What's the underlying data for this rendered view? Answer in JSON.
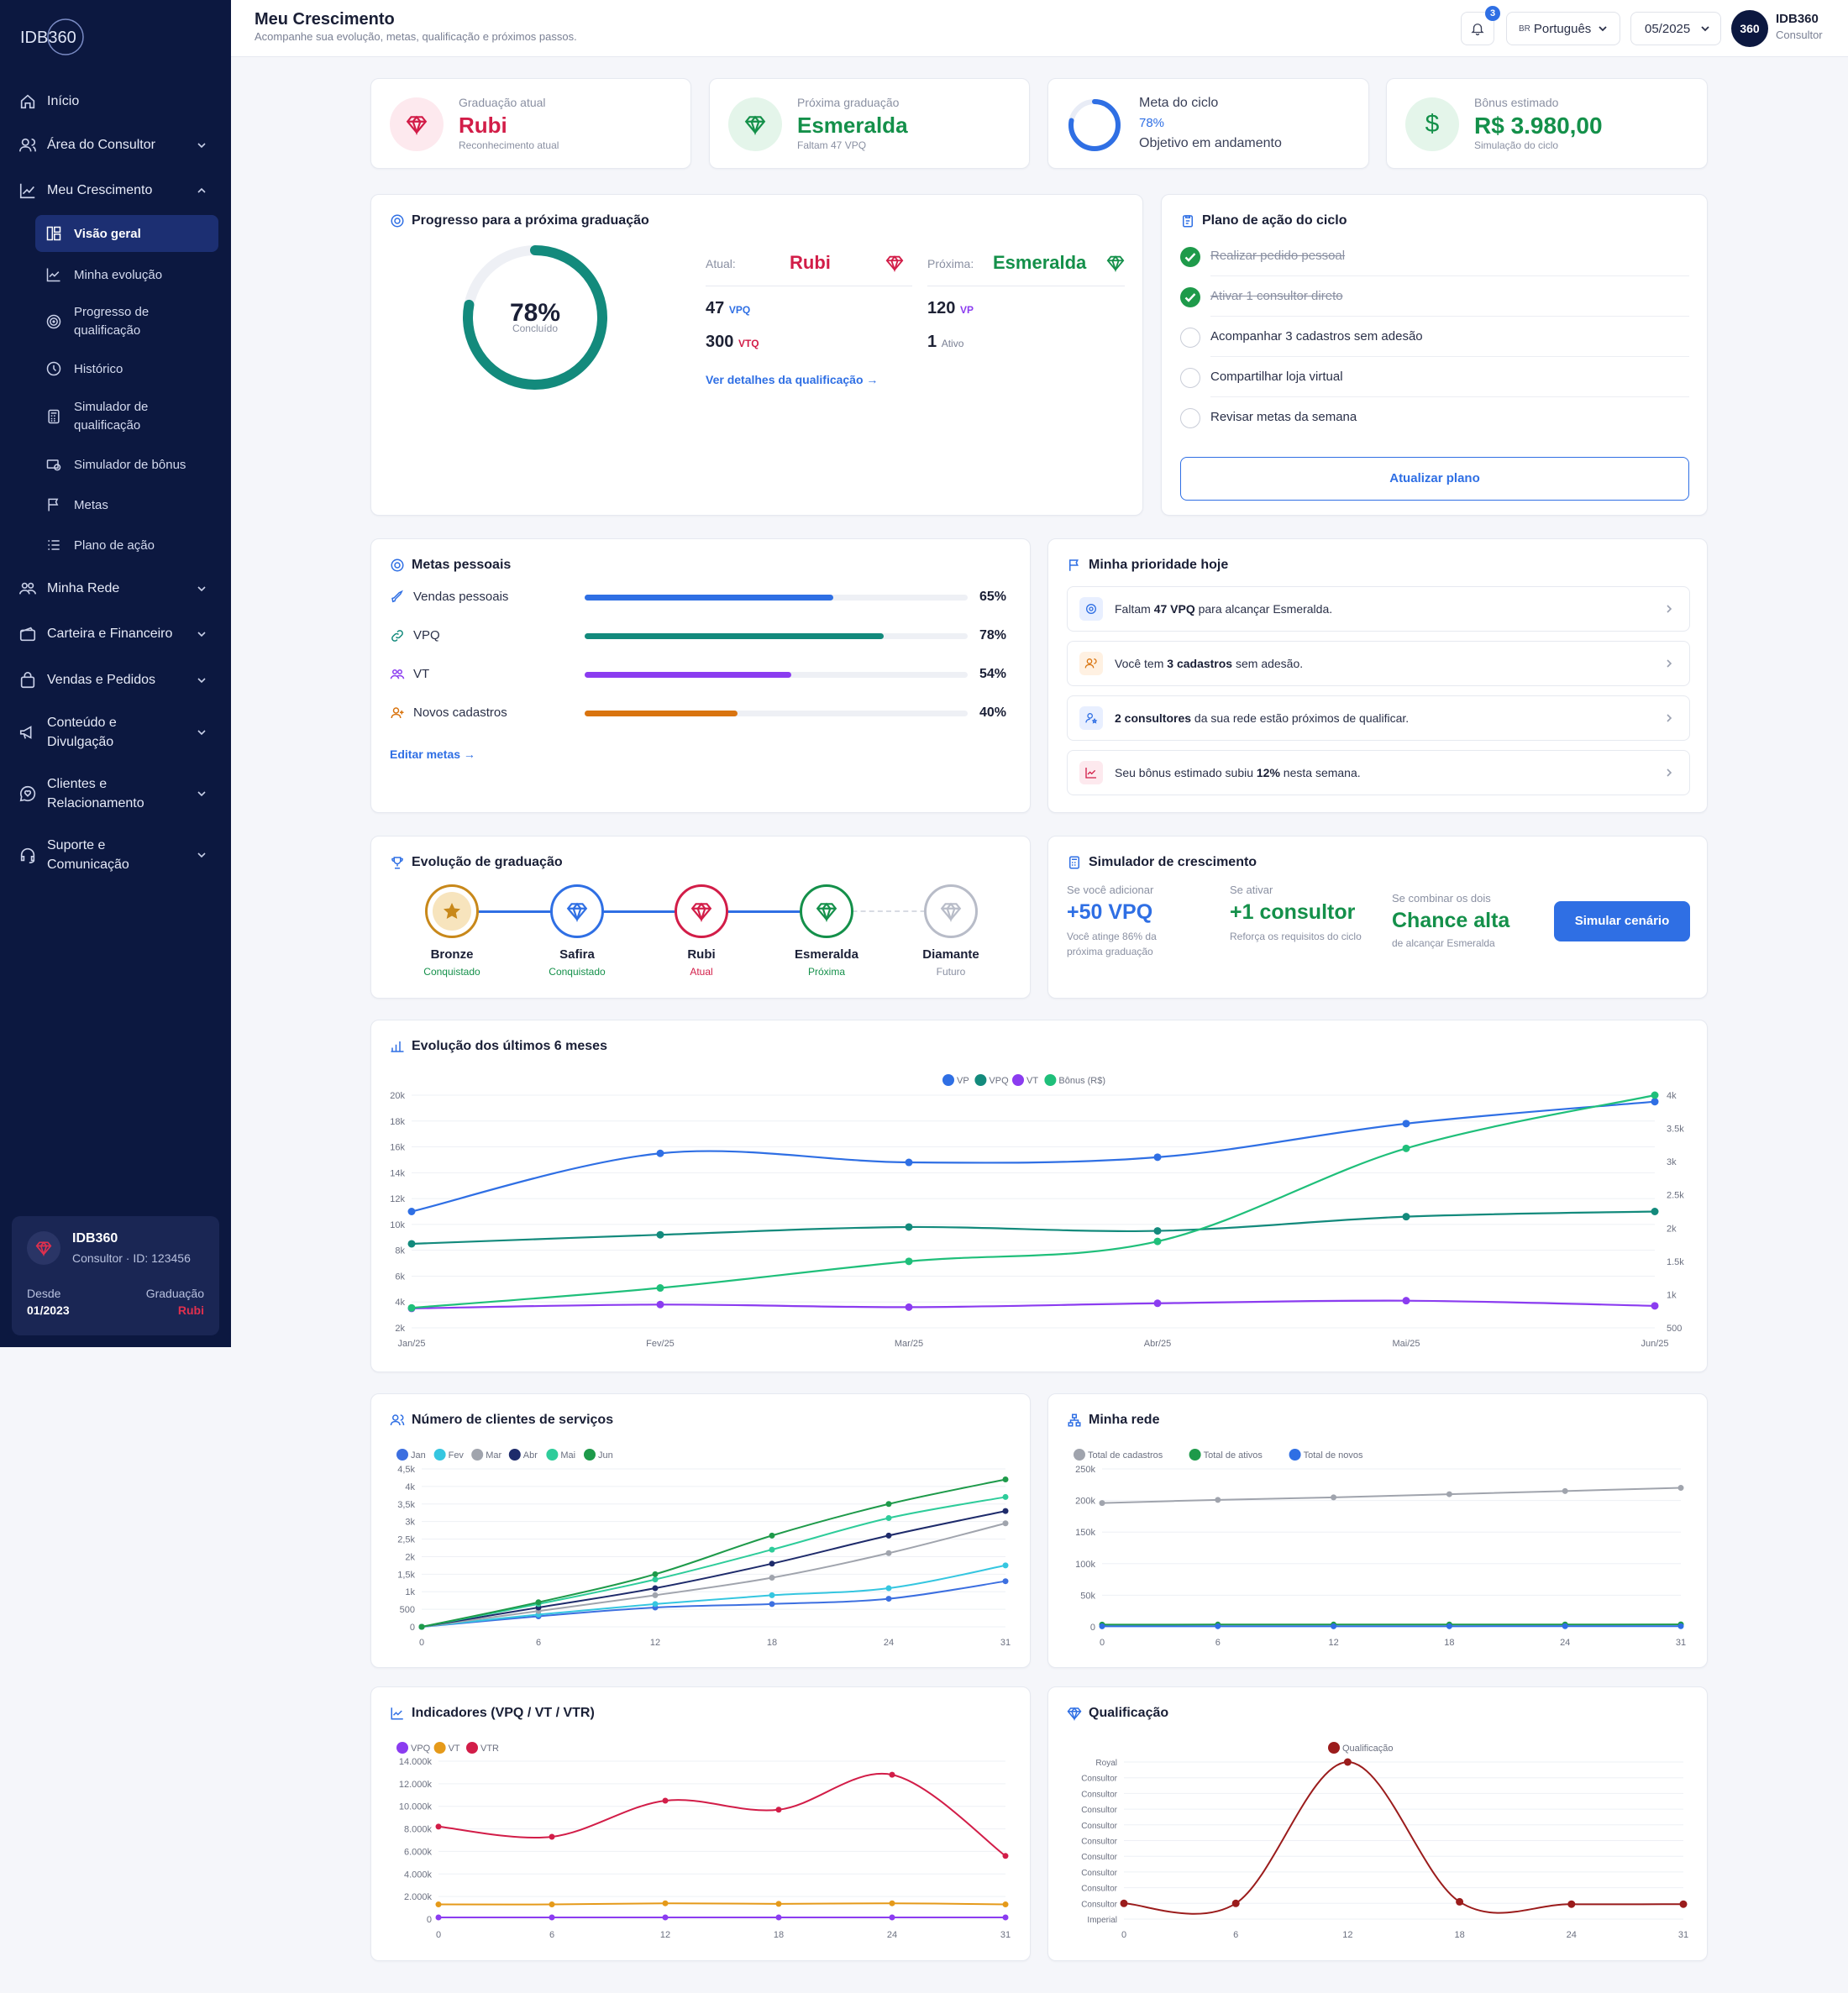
{
  "app": {
    "brand": "IDB360",
    "avatar_text": "360",
    "user_name": "IDB360",
    "user_role": "Consultor",
    "notif_count": "3",
    "language": "Português",
    "lang_flag": "BR",
    "period": "05/2025"
  },
  "header": {
    "title": "Meu Crescimento",
    "subtitle": "Acompanhe sua evolução, metas, qualificação e próximos passos."
  },
  "sidebar": {
    "items": [
      {
        "label": "Início",
        "icon": "home-icon"
      },
      {
        "label": "Área do Consultor",
        "icon": "users-icon"
      },
      {
        "label": "Meu Crescimento",
        "icon": "growth-chart-icon"
      },
      {
        "label": "Minha Rede",
        "icon": "network-icon"
      },
      {
        "label": "Carteira e Financeiro",
        "icon": "wallet-icon"
      },
      {
        "label": "Vendas e Pedidos",
        "icon": "bag-icon"
      },
      {
        "label": "Conteúdo e Divulgação",
        "icon": "megaphone-icon"
      },
      {
        "label": "Clientes e Relacionamento",
        "icon": "heart-chat-icon"
      },
      {
        "label": "Suporte e Comunicação",
        "icon": "headset-icon"
      }
    ],
    "sub": [
      {
        "label": "Visão geral",
        "icon": "dashboard-icon"
      },
      {
        "label": "Minha evolução",
        "icon": "line-chart-icon"
      },
      {
        "label": "Progresso de qualificação",
        "icon": "target-icon"
      },
      {
        "label": "Histórico",
        "icon": "clock-icon"
      },
      {
        "label": "Simulador de qualificação",
        "icon": "calculator-icon"
      },
      {
        "label": "Simulador de bônus",
        "icon": "money-icon"
      },
      {
        "label": "Metas",
        "icon": "flag-icon"
      },
      {
        "label": "Plano de ação",
        "icon": "list-icon"
      }
    ],
    "profile": {
      "name": "IDB360",
      "role": "Consultor · ID: 123456",
      "since_label": "Desde",
      "since": "01/2023",
      "grad_label": "Graduação",
      "grad": "Rubi"
    }
  },
  "kpis": [
    {
      "label": "Graduação atual",
      "value": "Rubi",
      "sub": "Reconhecimento atual",
      "icon": "diamond-icon",
      "color": "#d21d48"
    },
    {
      "label": "Próxima graduação",
      "value": "Esmeralda",
      "sub": "Faltam 47 VPQ",
      "icon": "diamond-icon",
      "color": "#14904a"
    },
    {
      "label": "Meta do ciclo",
      "value": "78%",
      "sub": "Objetivo em andamento",
      "icon": "ring-icon",
      "color": "#2f6fe4",
      "progress": 0.78
    },
    {
      "label": "Bônus estimado",
      "value": "R$ 3.980,00",
      "sub": "Simulação do ciclo",
      "icon": "dollar-icon",
      "color": "#14904a"
    }
  ],
  "progress": {
    "title": "Progresso para a próxima graduação",
    "pct": "78%",
    "pct_value": 0.78,
    "concluded": "Concluído",
    "current_label": "Atual:",
    "current": "Rubi",
    "next_label": "Próxima:",
    "next": "Esmeralda",
    "cur_vpq": "47",
    "cur_vpq_unit": "VPQ",
    "cur_vtq": "300",
    "cur_vtq_unit": "VTQ",
    "next_vp": "120",
    "next_vp_unit": "VP",
    "next_ativo": "1",
    "next_ativo_unit": "Ativo",
    "link": "Ver detalhes da qualificação →"
  },
  "plan": {
    "title": "Plano de ação do ciclo",
    "button": "Atualizar plano",
    "tasks": [
      {
        "label": "Realizar pedido pessoal",
        "done": true
      },
      {
        "label": "Ativar 1 consultor direto",
        "done": true
      },
      {
        "label": "Acompanhar 3 cadastros sem adesão",
        "done": false
      },
      {
        "label": "Compartilhar loja virtual",
        "done": false
      },
      {
        "label": "Revisar metas da semana",
        "done": false
      }
    ]
  },
  "goals": {
    "title": "Metas pessoais",
    "edit": "Editar metas →",
    "items": [
      {
        "label": "Vendas pessoais",
        "pct": "65%",
        "value": 0.65,
        "color": "#2f6fe4",
        "icon": "rocket-icon"
      },
      {
        "label": "VPQ",
        "pct": "78%",
        "value": 0.78,
        "color": "#138a7c",
        "icon": "link-icon"
      },
      {
        "label": "VT",
        "pct": "54%",
        "value": 0.54,
        "color": "#8b3cf0",
        "icon": "group-icon"
      },
      {
        "label": "Novos cadastros",
        "pct": "40%",
        "value": 0.4,
        "color": "#d9740f",
        "icon": "user-plus-icon"
      }
    ]
  },
  "priority": {
    "title": "Minha prioridade hoje",
    "items": [
      {
        "a": "Faltam ",
        "b": "47 VPQ",
        "c": " para alcançar Esmeralda.",
        "icon": "target-icon",
        "bg": "#e8efff",
        "fg": "#2f6fe4"
      },
      {
        "a": "Você tem ",
        "b": "3 cadastros",
        "c": " sem adesão.",
        "icon": "users-icon",
        "bg": "#fff1e2",
        "fg": "#d9740f"
      },
      {
        "a": "",
        "b": "2 consultores",
        "c": " da sua rede estão próximos de qualificar.",
        "icon": "user-cog-icon",
        "bg": "#e8efff",
        "fg": "#2f6fe4"
      },
      {
        "a": "Seu bônus estimado subiu ",
        "b": "12%",
        "c": " nesta semana.",
        "icon": "trend-icon",
        "bg": "#fde9ee",
        "fg": "#d21d48"
      }
    ]
  },
  "evolution": {
    "title": "Evolução de graduação",
    "steps": [
      {
        "name": "Bronze",
        "status": "Conquistado",
        "color": "#c8881a",
        "status_color": "#14904a"
      },
      {
        "name": "Safira",
        "status": "Conquistado",
        "color": "#2f6fe4",
        "status_color": "#14904a"
      },
      {
        "name": "Rubi",
        "status": "Atual",
        "color": "#d21d48",
        "status_color": "#d21d48"
      },
      {
        "name": "Esmeralda",
        "status": "Próxima",
        "color": "#14904a",
        "status_color": "#14904a"
      },
      {
        "name": "Diamante",
        "status": "Futuro",
        "color": "#b8bcc8",
        "status_color": "#8a90a2"
      }
    ]
  },
  "simulator": {
    "title": "Simulador de crescimento",
    "c1_label": "Se você adicionar",
    "c1_value": "+50 VPQ",
    "c1_sub": "Você atinge 86% da próxima graduação",
    "c2_label": "Se ativar",
    "c2_value": "+1 consultor",
    "c2_sub": "Reforça os requisitos do ciclo",
    "c3_label": "Se combinar os dois",
    "c3_value": "Chance alta",
    "c3_sub": "de alcançar Esmeralda",
    "button": "Simular cenário"
  },
  "chart_data": [
    {
      "id": "six-months",
      "type": "line",
      "title": "Evolução dos últimos 6 meses",
      "categories": [
        "Jan/25",
        "Fev/25",
        "Mar/25",
        "Abr/25",
        "Mai/25",
        "Jun/25"
      ],
      "yticks": [
        "20k",
        "18k",
        "16k",
        "14k",
        "12k",
        "10k",
        "8k",
        "6k",
        "4k",
        "2k"
      ],
      "y2ticks": [
        "4k",
        "3.5k",
        "3k",
        "2.5k",
        "2k",
        "1.5k",
        "1k",
        "500"
      ],
      "ylim": [
        2000,
        20000
      ],
      "y2lim": [
        500,
        4000
      ],
      "series": [
        {
          "name": "VP",
          "color": "#2f6fe4",
          "axis": "left",
          "values": [
            11000,
            15500,
            14800,
            15200,
            17800,
            19500
          ]
        },
        {
          "name": "VPQ",
          "color": "#138a7c",
          "axis": "left",
          "values": [
            8500,
            9200,
            9800,
            9500,
            10600,
            11000
          ]
        },
        {
          "name": "VT",
          "color": "#8b3cf0",
          "axis": "left",
          "values": [
            3500,
            3800,
            3600,
            3900,
            4100,
            3700
          ]
        },
        {
          "name": "Bônus (R$)",
          "color": "#1fbf7a",
          "axis": "right",
          "values": [
            800,
            1100,
            1500,
            1800,
            3200,
            4000
          ]
        }
      ]
    },
    {
      "id": "clients",
      "type": "line",
      "title": "Número de clientes de serviços",
      "x": [
        0,
        6,
        12,
        18,
        24,
        31
      ],
      "xticks": [
        "0",
        "6",
        "12",
        "18",
        "24",
        "31"
      ],
      "yticks": [
        "4,5k",
        "4k",
        "3,5k",
        "3k",
        "2,5k",
        "2k",
        "1,5k",
        "1k",
        "500",
        "0"
      ],
      "ylim": [
        0,
        4500
      ],
      "series": [
        {
          "name": "Jan",
          "color": "#3c6fe0",
          "values": [
            0,
            300,
            550,
            650,
            800,
            1300
          ]
        },
        {
          "name": "Fev",
          "color": "#35c6e0",
          "values": [
            0,
            350,
            650,
            900,
            1100,
            1750
          ]
        },
        {
          "name": "Mar",
          "color": "#a0a4ad",
          "values": [
            0,
            450,
            900,
            1400,
            2100,
            2950
          ]
        },
        {
          "name": "Abr",
          "color": "#1e2b6b",
          "values": [
            0,
            550,
            1100,
            1800,
            2600,
            3300
          ]
        },
        {
          "name": "Mai",
          "color": "#2ecc9a",
          "values": [
            0,
            650,
            1350,
            2200,
            3100,
            3700
          ]
        },
        {
          "name": "Jun",
          "color": "#1e9a4a",
          "values": [
            0,
            700,
            1500,
            2600,
            3500,
            4200
          ]
        }
      ]
    },
    {
      "id": "network",
      "type": "line",
      "title": "Minha rede",
      "x": [
        0,
        6,
        12,
        18,
        24,
        31
      ],
      "xticks": [
        "0",
        "6",
        "12",
        "18",
        "24",
        "31"
      ],
      "yticks": [
        "250k",
        "200k",
        "150k",
        "100k",
        "50k",
        "0"
      ],
      "ylim": [
        0,
        250000
      ],
      "series": [
        {
          "name": "Total de cadastros",
          "color": "#a0a4ad",
          "values": [
            196000,
            201000,
            205000,
            210000,
            215000,
            220000
          ]
        },
        {
          "name": "Total de ativos",
          "color": "#1e9a4a",
          "values": [
            3500,
            3600,
            3600,
            3700,
            3700,
            3800
          ]
        },
        {
          "name": "Total de novos",
          "color": "#2f6fe4",
          "values": [
            800,
            900,
            850,
            900,
            950,
            1000
          ]
        }
      ]
    },
    {
      "id": "indicators",
      "type": "line",
      "title": "Indicadores (VPQ / VT / VTR)",
      "x": [
        0,
        6,
        12,
        18,
        24,
        31
      ],
      "xticks": [
        "0",
        "6",
        "12",
        "18",
        "24",
        "31"
      ],
      "yticks": [
        "14.000k",
        "12.000k",
        "10.000k",
        "8.000k",
        "6.000k",
        "4.000k",
        "2.000k",
        "0"
      ],
      "ylim": [
        0,
        14000
      ],
      "series": [
        {
          "name": "VPQ",
          "color": "#8b3cf0",
          "values": [
            150,
            150,
            150,
            150,
            150,
            150
          ]
        },
        {
          "name": "VT",
          "color": "#e59a1a",
          "values": [
            1300,
            1300,
            1400,
            1350,
            1400,
            1300
          ]
        },
        {
          "name": "VTR",
          "color": "#d21d48",
          "values": [
            8200,
            7300,
            10500,
            9700,
            12800,
            5600
          ]
        }
      ]
    },
    {
      "id": "qualification",
      "type": "line",
      "title": "Qualificação",
      "x": [
        0,
        6,
        12,
        18,
        24,
        31
      ],
      "xticks": [
        "0",
        "6",
        "12",
        "18",
        "24",
        "31"
      ],
      "ylabels": [
        "Royal",
        "Consultor",
        "Consultor",
        "Consultor",
        "Consultor",
        "Consultor",
        "Consultor",
        "Consultor",
        "Consultor",
        "Consultor",
        "Imperial"
      ],
      "ylim": [
        0,
        10
      ],
      "series": [
        {
          "name": "Qualificação",
          "color": "#9b1c1c",
          "values": [
            1,
            1,
            10,
            1.1,
            0.95,
            0.95
          ]
        }
      ]
    }
  ]
}
